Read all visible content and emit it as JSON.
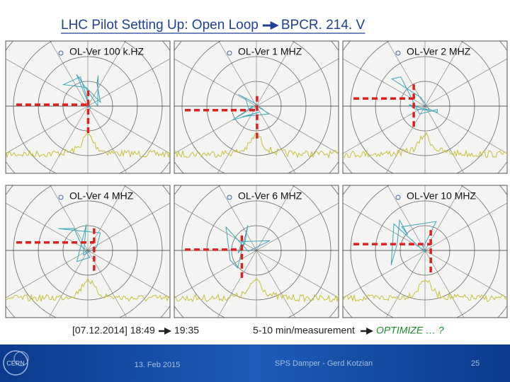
{
  "header": {
    "title_left": "LHC Pilot Setting Up: Open Loop",
    "title_right": "BPCR. 214. V"
  },
  "panels": [
    {
      "label": "OL-Ver 100 k.HZ"
    },
    {
      "label": "OL-Ver 1 MHZ"
    },
    {
      "label": "OL-Ver 2 MHZ"
    },
    {
      "label": "OL-Ver 4 MHZ"
    },
    {
      "label": "OL-Ver 6 MHZ"
    },
    {
      "label": "OL-Ver 10 MHZ"
    }
  ],
  "notes": {
    "time_start": "[07.12.2014] 18:49",
    "time_end": "19:35",
    "measurement": "5-10 min/measurement",
    "action": "OPTIMIZE … ?"
  },
  "footer": {
    "logo": "CERN",
    "date": "13. Feb 2015",
    "author": "SPS Damper - Gerd Kotzian",
    "page": "25"
  }
}
